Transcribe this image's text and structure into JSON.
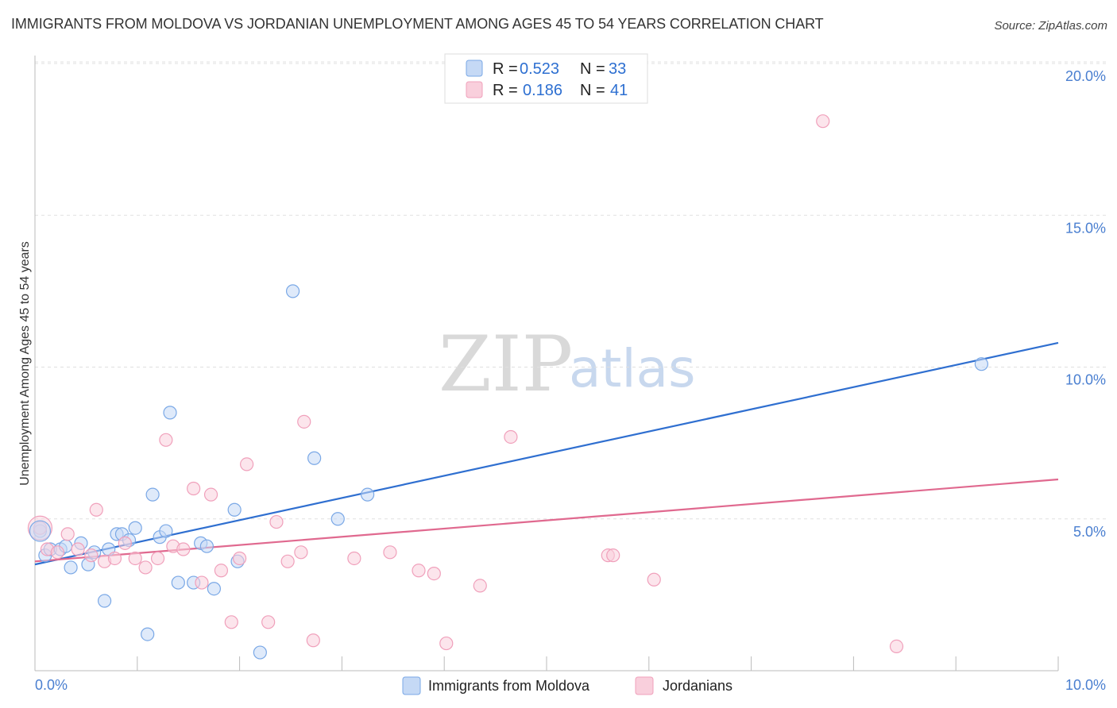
{
  "chart_data": {
    "type": "scatter",
    "title": "IMMIGRANTS FROM MOLDOVA VS JORDANIAN UNEMPLOYMENT AMONG AGES 45 TO 54 YEARS CORRELATION CHART",
    "source": "Source: ZipAtlas.com",
    "ylabel": "Unemployment Among Ages 45 to 54 years",
    "xlim": [
      0,
      10
    ],
    "ylim": [
      0,
      20
    ],
    "x_tick_labels": [
      "0.0%",
      "10.0%"
    ],
    "y_tick_values": [
      5,
      10,
      15,
      20
    ],
    "y_tick_labels": [
      "5.0%",
      "10.0%",
      "15.0%",
      "20.0%"
    ],
    "watermark": {
      "zip": "ZIP",
      "atlas": "atlas"
    },
    "legend": {
      "rows": [
        {
          "r_label": "R =",
          "r_value": "0.523",
          "n_label": "N =",
          "n_value": "33"
        },
        {
          "r_label": "R =",
          "r_value": "0.186",
          "n_label": "N =",
          "n_value": "41"
        }
      ]
    },
    "series": [
      {
        "name": "Immigrants from Moldova",
        "color": "#7aa8e6",
        "fill": "#c5d9f5",
        "line_color": "#2f6fd0",
        "trend": [
          [
            0,
            3.5
          ],
          [
            10,
            10.8
          ]
        ],
        "points": [
          [
            0.05,
            4.6
          ],
          [
            0.1,
            3.8
          ],
          [
            0.15,
            4.0
          ],
          [
            0.25,
            4.0
          ],
          [
            0.35,
            3.4
          ],
          [
            0.45,
            4.2
          ],
          [
            0.52,
            3.5
          ],
          [
            0.58,
            3.9
          ],
          [
            0.68,
            2.3
          ],
          [
            0.72,
            4.0
          ],
          [
            0.8,
            4.5
          ],
          [
            0.85,
            4.5
          ],
          [
            0.92,
            4.3
          ],
          [
            0.98,
            4.7
          ],
          [
            1.1,
            1.2
          ],
          [
            1.15,
            5.8
          ],
          [
            1.22,
            4.4
          ],
          [
            1.28,
            4.6
          ],
          [
            1.32,
            8.5
          ],
          [
            1.4,
            2.9
          ],
          [
            1.55,
            2.9
          ],
          [
            1.62,
            4.2
          ],
          [
            1.68,
            4.1
          ],
          [
            1.75,
            2.7
          ],
          [
            1.95,
            5.3
          ],
          [
            1.98,
            3.6
          ],
          [
            2.2,
            0.6
          ],
          [
            2.52,
            12.5
          ],
          [
            2.73,
            7.0
          ],
          [
            2.96,
            5.0
          ],
          [
            3.25,
            5.8
          ],
          [
            9.25,
            10.1
          ],
          [
            0.3,
            4.1
          ]
        ]
      },
      {
        "name": "Jordanians",
        "color": "#f0a0bb",
        "fill": "#f9cfdc",
        "line_color": "#e0698f",
        "trend": [
          [
            0,
            3.6
          ],
          [
            10,
            6.3
          ]
        ],
        "points": [
          [
            0.05,
            4.7
          ],
          [
            0.12,
            4.0
          ],
          [
            0.22,
            3.9
          ],
          [
            0.32,
            4.5
          ],
          [
            0.42,
            4.0
          ],
          [
            0.55,
            3.8
          ],
          [
            0.6,
            5.3
          ],
          [
            0.68,
            3.6
          ],
          [
            0.78,
            3.7
          ],
          [
            0.88,
            4.2
          ],
          [
            0.98,
            3.7
          ],
          [
            1.08,
            3.4
          ],
          [
            1.2,
            3.7
          ],
          [
            1.28,
            7.6
          ],
          [
            1.35,
            4.1
          ],
          [
            1.45,
            4.0
          ],
          [
            1.55,
            6.0
          ],
          [
            1.63,
            2.9
          ],
          [
            1.72,
            5.8
          ],
          [
            1.82,
            3.3
          ],
          [
            1.92,
            1.6
          ],
          [
            2.0,
            3.7
          ],
          [
            2.07,
            6.8
          ],
          [
            2.28,
            1.6
          ],
          [
            2.36,
            4.9
          ],
          [
            2.47,
            3.6
          ],
          [
            2.6,
            3.9
          ],
          [
            2.63,
            8.2
          ],
          [
            2.72,
            1.0
          ],
          [
            3.12,
            3.7
          ],
          [
            3.47,
            3.9
          ],
          [
            3.75,
            3.3
          ],
          [
            3.9,
            3.2
          ],
          [
            4.02,
            0.9
          ],
          [
            4.35,
            2.8
          ],
          [
            4.65,
            7.7
          ],
          [
            5.6,
            3.8
          ],
          [
            5.65,
            3.8
          ],
          [
            6.05,
            3.0
          ],
          [
            7.7,
            18.1
          ],
          [
            8.42,
            0.8
          ]
        ]
      }
    ]
  }
}
